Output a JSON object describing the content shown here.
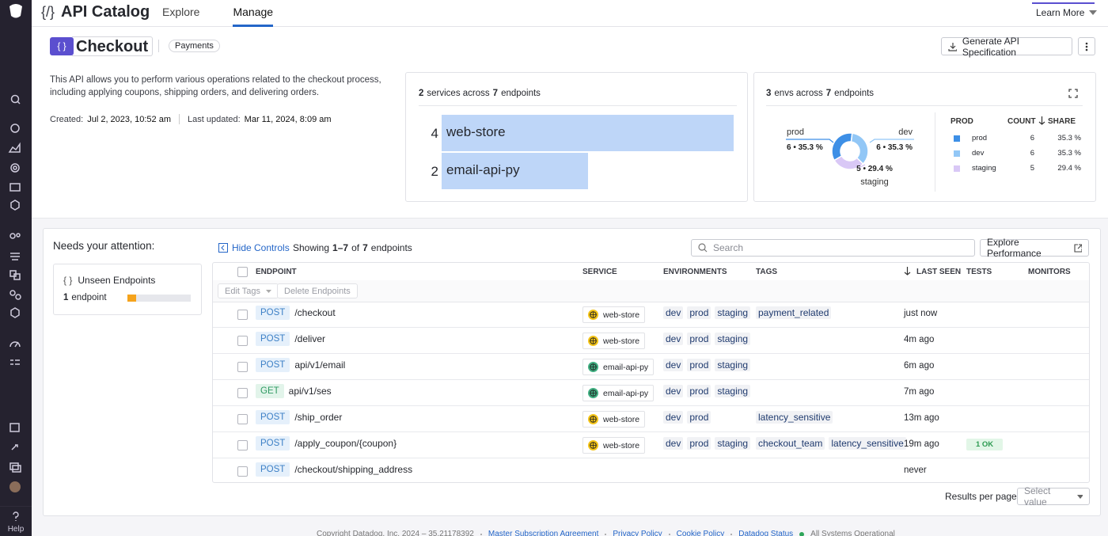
{
  "nav": {
    "icon": "{/}",
    "title": "API Catalog",
    "tabs": [
      "Explore",
      "Manage"
    ],
    "active_tab": 1,
    "learn_more": "Learn More"
  },
  "sidebar": {
    "help": "Help"
  },
  "api": {
    "icon": "{ }",
    "name": "Checkout",
    "team": "Payments",
    "generate_button": "Generate API Specification",
    "description": "This API allows you to perform various operations related to the checkout process, including applying coupons, shipping orders, and delivering orders.",
    "created_label": "Created:",
    "created": "Jul 2, 2023, 10:52 am",
    "updated_label": "Last updated:",
    "updated": "Mar 11, 2024, 8:09 am"
  },
  "services_card": {
    "count": 2,
    "text_a": "services across",
    "endpoints": 7,
    "text_b": "endpoints",
    "chart_data": {
      "type": "bar",
      "orientation": "horizontal",
      "categories": [
        "web-store",
        "email-api-py"
      ],
      "values": [
        4,
        2
      ],
      "color": "#bed6f8",
      "icon_colors": [
        "#f3c316",
        "#3fae80"
      ]
    }
  },
  "envs_card": {
    "count": 3,
    "text_a": "envs across",
    "endpoints": 7,
    "text_b": "endpoints",
    "chart_data": {
      "type": "donut",
      "categories": [
        "prod",
        "dev",
        "staging"
      ],
      "values": [
        6,
        6,
        5
      ],
      "shares": [
        35.3,
        35.3,
        29.4
      ],
      "share_labels": [
        "35.3 %",
        "35.3 %",
        "29.4 %"
      ],
      "callouts": [
        "6 • 35.3 %",
        "6 • 35.3 %",
        "5 • 29.4 %"
      ],
      "colors": [
        "#3d8fe6",
        "#92c7f6",
        "#d9c8f6"
      ],
      "legend_headers": [
        "PROD",
        "COUNT",
        "SHARE"
      ]
    }
  },
  "attention": {
    "title": "Needs your attention:",
    "icon": "{ }",
    "item": "Unseen Endpoints",
    "count": 1,
    "unit": "endpoint"
  },
  "controls": {
    "hide_controls": "Hide Controls",
    "showing": "Showing",
    "range": "1–7",
    "of": "of",
    "total": 7,
    "unit": "endpoints",
    "search_placeholder": "Search",
    "explore": "Explore Performance",
    "edit_tags": "Edit Tags",
    "delete": "Delete Endpoints"
  },
  "table": {
    "columns": [
      "ENDPOINT",
      "SERVICE",
      "ENVIRONMENTS",
      "TAGS",
      "LAST SEEN",
      "TESTS",
      "MONITORS"
    ],
    "rows": [
      {
        "method": "POST",
        "path": "/checkout",
        "service": "web-store",
        "envs": [
          "dev",
          "prod",
          "staging"
        ],
        "tags": [
          "payment_related"
        ],
        "last_seen": "just now"
      },
      {
        "method": "POST",
        "path": "/deliver",
        "service": "web-store",
        "envs": [
          "dev",
          "prod",
          "staging"
        ],
        "tags": [],
        "last_seen": "4m ago"
      },
      {
        "method": "POST",
        "path": "api/v1/email",
        "service": "email-api-py",
        "envs": [
          "dev",
          "prod",
          "staging"
        ],
        "tags": [],
        "last_seen": "6m ago"
      },
      {
        "method": "GET",
        "path": "api/v1/ses",
        "service": "email-api-py",
        "envs": [
          "dev",
          "prod",
          "staging"
        ],
        "tags": [],
        "last_seen": "7m ago"
      },
      {
        "method": "POST",
        "path": "/ship_order",
        "service": "web-store",
        "envs": [
          "dev",
          "prod"
        ],
        "tags": [
          "latency_sensitive"
        ],
        "last_seen": "13m ago"
      },
      {
        "method": "POST",
        "path": "/apply_coupon/{coupon}",
        "service": "web-store",
        "envs": [
          "dev",
          "prod",
          "staging"
        ],
        "tags": [
          "checkout_team",
          "latency_sensitive"
        ],
        "last_seen": "19m ago",
        "tests": "1 OK"
      },
      {
        "method": "POST",
        "path": "/checkout/shipping_address",
        "envs": [],
        "tags": [],
        "last_seen": "never"
      }
    ]
  },
  "pagination": {
    "label": "Results per page:",
    "select": "Select value"
  },
  "footer": {
    "text": "Copyright Datadog, Inc. 2024 – 35.21178392",
    "links": [
      "Master Subscription Agreement",
      "Privacy Policy",
      "Cookie Policy",
      "Datadog Status"
    ],
    "status": "All Systems Operational"
  }
}
